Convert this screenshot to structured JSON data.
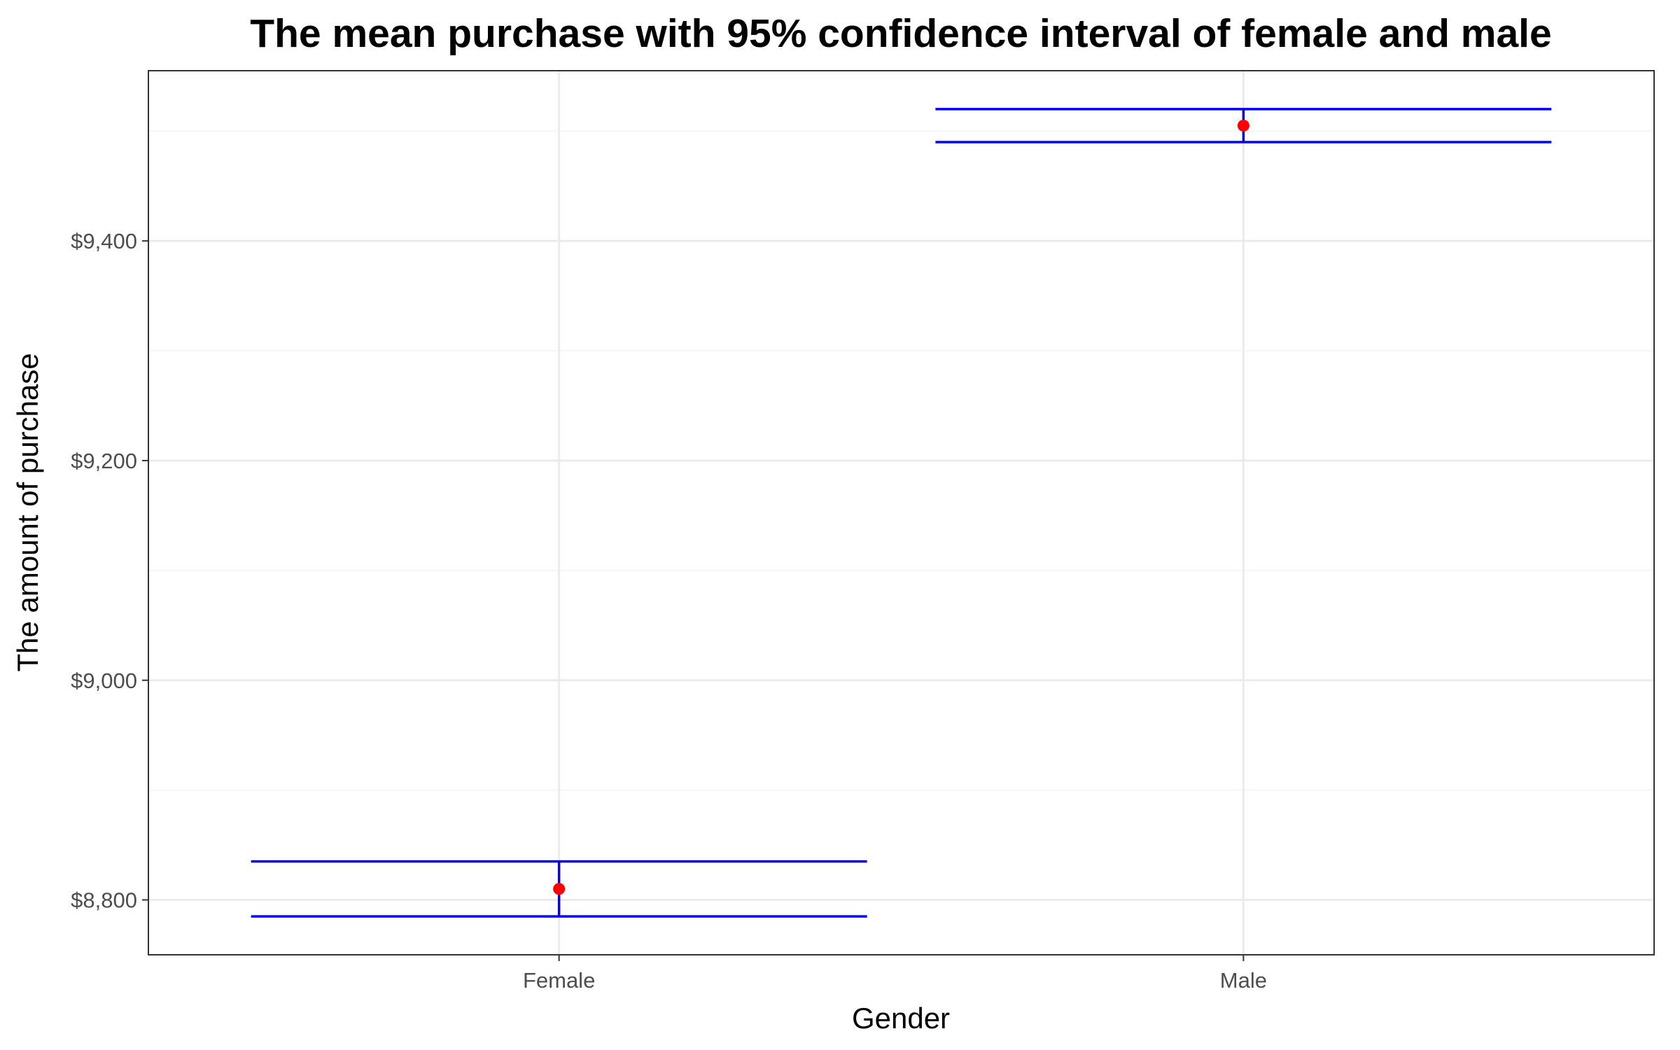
{
  "chart_data": {
    "type": "scatter",
    "title": "The mean purchase with 95% confidence interval of female and male",
    "xlabel": "Gender",
    "ylabel": "The amount of purchase",
    "categories": [
      "Female",
      "Male"
    ],
    "series": [
      {
        "points": [
          {
            "category": "Female",
            "mean": 8810,
            "lower": 8785,
            "upper": 8835
          },
          {
            "category": "Male",
            "mean": 9505,
            "lower": 9490,
            "upper": 9520
          }
        ]
      }
    ],
    "ylim": [
      8750,
      9555
    ],
    "yticks": [
      8800,
      9000,
      9200,
      9400
    ],
    "ytick_labels": [
      "$8,800",
      "$9,000",
      "$9,200",
      "$9,400"
    ],
    "grid": true,
    "theme": "bw",
    "colors": {
      "point": "#ff0000",
      "interval": "#0000ff",
      "grid_major": "#ebebeb",
      "grid_minor": "#f5f5f5",
      "panel_border": "#333333"
    }
  }
}
